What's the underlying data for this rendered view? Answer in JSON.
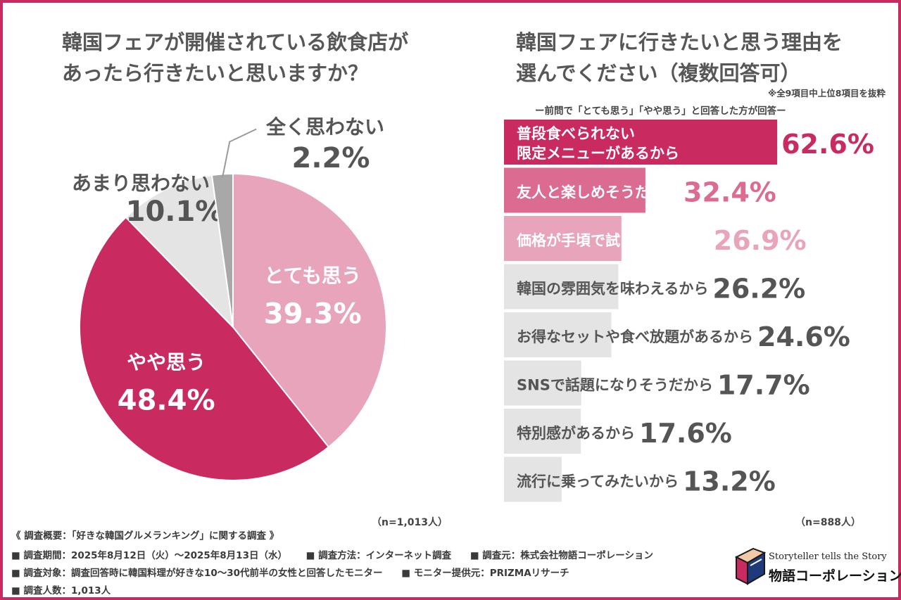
{
  "pie": {
    "title": "韓国フェアが開催されている飲食店が\nあったら行きたいと思いますか？",
    "n_label": "（n=1,013人）"
  },
  "bars": {
    "title": "韓国フェアに行きたいと思う理由を\n選んでください（複数回答可）",
    "note": "※全9項目中上位8項目を抜粋",
    "subtitle": "ー前問で「とても思う」「やや思う」と回答した方が回答ー",
    "n_label": "（n=888人）"
  },
  "footer": {
    "line1": "《 調査概要：「好きな韓国グルメランキング」に関する調査 》",
    "line2": [
      "■ 調査期間：2025年8月12日（火）～2025年8月13日（水）",
      "■ 調査方法：インターネット調査",
      "■ 調査元：株式会社物語コーポレーション"
    ],
    "line3": [
      "■ 調査対象：調査回答時に韓国料理が好きな10～30代前半の女性と回答したモニター",
      "■ モニター提供元：PRIZMAリサーチ"
    ],
    "line4": "■ 調査人数：1,013人"
  },
  "logo": {
    "en": "Storyteller tells the Story",
    "jp": "物語コーポレーション",
    "icon": "book-icon"
  },
  "colors": {
    "frame": "#c92a5f",
    "dark_pink": "#c92a5f",
    "mid_pink": "#dc6b91",
    "light_pink": "#e8a4bb",
    "light_gray": "#e4e4e4",
    "mid_gray": "#a8a8a8"
  },
  "chart_data": [
    {
      "type": "pie",
      "title": "韓国フェアが開催されている飲食店があったら行きたいと思いますか？",
      "slices": [
        {
          "label": "とても思う",
          "value": 39.3,
          "value_label": "39.3%",
          "color": "#e8a4bb",
          "text_color": "#ffffff"
        },
        {
          "label": "やや思う",
          "value": 48.4,
          "value_label": "48.4%",
          "color": "#c92a5f",
          "text_color": "#ffffff"
        },
        {
          "label": "あまり思わない",
          "value": 10.1,
          "value_label": "10.1%",
          "color": "#e4e4e4",
          "text_color": "#555555"
        },
        {
          "label": "全く思わない",
          "value": 2.2,
          "value_label": "2.2%",
          "color": "#a8a8a8",
          "text_color": "#555555"
        }
      ],
      "start": "top",
      "direction": "clockwise"
    },
    {
      "type": "bar",
      "orientation": "horizontal",
      "title": "韓国フェアに行きたいと思う理由を選んでください（複数回答可）",
      "categories": [
        "普段食べられない\n限定メニューがあるから",
        "友人と楽しめそうだから",
        "価格が手頃で試しやすいから",
        "韓国の雰囲気を味わえるから",
        "お得なセットや食べ放題があるから",
        "SNSで話題になりそうだから",
        "特別感があるから",
        "流行に乗ってみたいから"
      ],
      "values": [
        62.6,
        32.4,
        26.9,
        26.2,
        24.6,
        17.7,
        17.6,
        13.2
      ],
      "value_labels": [
        "62.6%",
        "32.4%",
        "26.9%",
        "26.2%",
        "24.6%",
        "17.7%",
        "17.6%",
        "13.2%"
      ],
      "bar_colors": [
        "#c92a5f",
        "#dc6b91",
        "#e8a4bb",
        "#e4e4e4",
        "#e4e4e4",
        "#e4e4e4",
        "#e4e4e4",
        "#e4e4e4"
      ],
      "value_colors": [
        "#c92a5f",
        "#dc6b91",
        "#e8a4bb",
        "#555555",
        "#555555",
        "#555555",
        "#555555",
        "#555555"
      ],
      "label_colors": [
        "#ffffff",
        "#ffffff",
        "#ffffff",
        "#555555",
        "#555555",
        "#555555",
        "#555555",
        "#555555"
      ],
      "xlim": [
        0,
        100
      ],
      "grid": false
    }
  ]
}
